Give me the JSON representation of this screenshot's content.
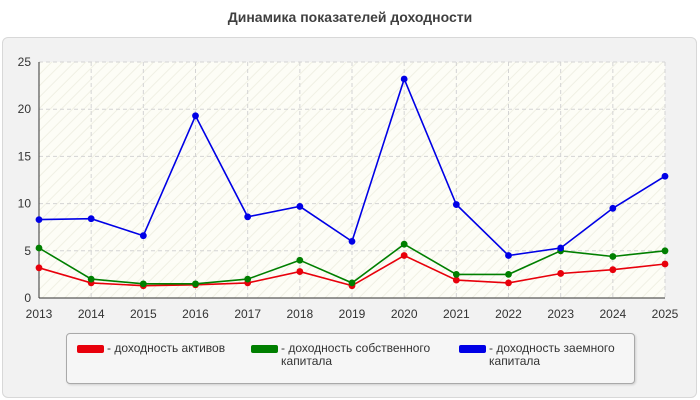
{
  "chart_data": {
    "type": "line",
    "title": "Динамика показателей доходности",
    "xlabel": "",
    "ylabel": "",
    "x": [
      2013,
      2014,
      2015,
      2016,
      2017,
      2018,
      2019,
      2020,
      2021,
      2022,
      2023,
      2024,
      2025
    ],
    "ylim": [
      0,
      25
    ],
    "yticks": [
      0,
      5,
      10,
      15,
      20,
      25
    ],
    "grid": true,
    "legend_position": "bottom",
    "series": [
      {
        "name": "- доходность активов",
        "color": "#e8000b",
        "values": [
          3.2,
          1.6,
          1.3,
          1.4,
          1.6,
          2.8,
          1.3,
          4.5,
          1.9,
          1.6,
          2.6,
          3.0,
          3.6
        ]
      },
      {
        "name": "- доходность собственного капитала",
        "color": "#007f00",
        "values": [
          5.3,
          2.0,
          1.5,
          1.5,
          2.0,
          4.0,
          1.6,
          5.7,
          2.5,
          2.5,
          5.0,
          4.4,
          5.0
        ]
      },
      {
        "name": "- доходность заемного капитала",
        "color": "#0000e6",
        "values": [
          8.3,
          8.4,
          6.6,
          19.3,
          8.6,
          9.7,
          6.0,
          23.2,
          9.9,
          4.5,
          5.3,
          9.5,
          12.9
        ]
      }
    ]
  }
}
